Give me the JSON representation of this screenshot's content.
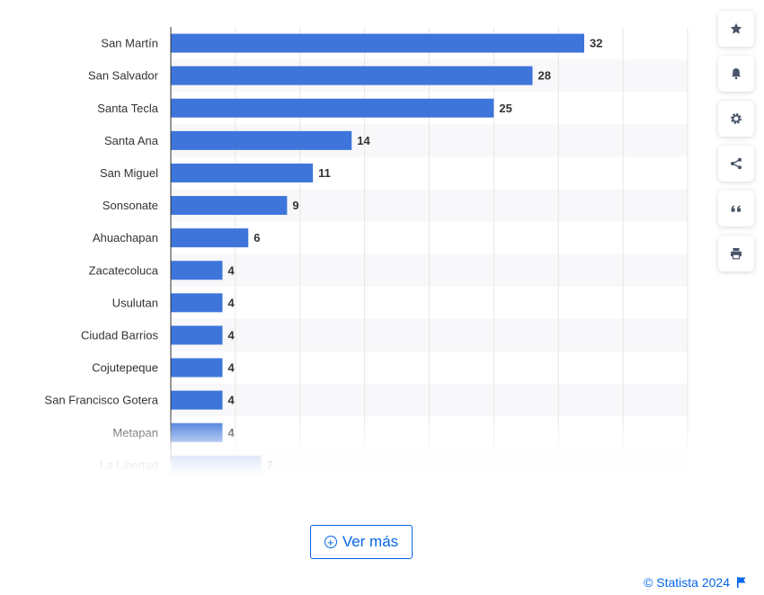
{
  "chart_data": {
    "type": "bar",
    "orientation": "horizontal",
    "categories": [
      "San Martín",
      "San Salvador",
      "Santa Tecla",
      "Santa Ana",
      "San Miguel",
      "Sonsonate",
      "Ahuachapan",
      "Zacatecoluca",
      "Usulutan",
      "Ciudad Barrios",
      "Cojutepeque",
      "San Francisco Gotera",
      "Metapan",
      "La Libertad"
    ],
    "values": [
      32,
      28,
      25,
      14,
      11,
      9,
      6,
      4,
      4,
      4,
      4,
      4,
      4,
      7
    ],
    "xlim": [
      0,
      40
    ],
    "grid": true,
    "bar_color": "#3e75db",
    "fade_last_rows": true
  },
  "toolbar": {
    "buttons": [
      {
        "name": "favorite-button",
        "icon": "star-icon"
      },
      {
        "name": "notification-button",
        "icon": "bell-icon"
      },
      {
        "name": "settings-button",
        "icon": "gear-icon"
      },
      {
        "name": "share-button",
        "icon": "share-icon"
      },
      {
        "name": "cite-button",
        "icon": "quote-icon"
      },
      {
        "name": "print-button",
        "icon": "printer-icon"
      }
    ]
  },
  "more_button": {
    "label": "Ver más"
  },
  "credit": {
    "text": "© Statista 2024",
    "icon": "flag-icon"
  }
}
